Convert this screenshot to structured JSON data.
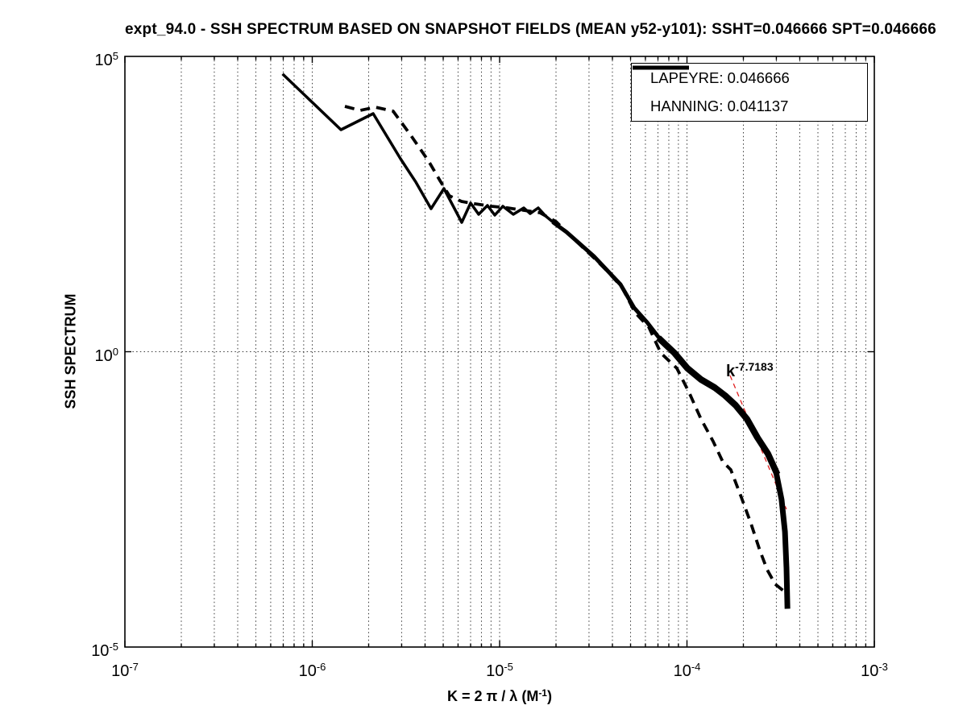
{
  "axes": {
    "x": {
      "label_main": "K = 2 π / λ  (M",
      "label_sup": "-1",
      "label_close": ")",
      "tick_base": "10",
      "tick_exponents": [
        "-7",
        "-6",
        "-5",
        "-4",
        "-3"
      ]
    },
    "y": {
      "label": "SSH SPECTRUM",
      "tick_base": "10",
      "tick_exponents": [
        "5",
        "0",
        "-5"
      ]
    }
  },
  "legend": {
    "entries": [
      {
        "label": "LAPEYRE: 0.046666",
        "line_style": "solid"
      },
      {
        "label": "HANNING: 0.041137",
        "line_style": "dashed"
      }
    ]
  },
  "annotation": {
    "base": "k",
    "exponent": "-7.7183"
  },
  "colors": {
    "curve": "#000000",
    "fit_line": "#e02020",
    "grid": "#3a3a3a",
    "axis": "#000000",
    "background": "#ffffff"
  },
  "chart_data": {
    "type": "line",
    "title": "expt_94.0 - SSH SPECTRUM BASED ON SNAPSHOT FIELDS (MEAN y52-y101): SSHT=0.046666 SPT=0.046666",
    "xlabel": "K = 2 pi / lambda (M^-1)",
    "ylabel": "SSH SPECTRUM",
    "x_scale": "log10",
    "y_scale": "log10",
    "xlim_log10": [
      -7,
      -3
    ],
    "ylim_log10": [
      -5,
      5
    ],
    "x_major_ticks_log10": [
      -7,
      -6,
      -5,
      -4,
      -3
    ],
    "y_major_ticks_log10": [
      5,
      0,
      -5
    ],
    "grid": {
      "x_minor_gridlines": true,
      "x_major_gridlines": true,
      "y_gridlines_log10": [
        0
      ],
      "style": "dotted"
    },
    "legend_position": "top-right",
    "series": [
      {
        "name": "LAPEYRE",
        "value": 0.046666,
        "style": "solid",
        "points_log10": [
          [
            -6.153,
            4.686
          ],
          [
            -5.847,
            3.758
          ],
          [
            -5.675,
            4.031
          ],
          [
            -5.529,
            3.267
          ],
          [
            -5.447,
            2.871
          ],
          [
            -5.366,
            2.421
          ],
          [
            -5.297,
            2.762
          ],
          [
            -5.202,
            2.189
          ],
          [
            -5.155,
            2.517
          ],
          [
            -5.112,
            2.326
          ],
          [
            -5.065,
            2.476
          ],
          [
            -5.026,
            2.312
          ],
          [
            -4.983,
            2.462
          ],
          [
            -4.927,
            2.326
          ],
          [
            -4.871,
            2.435
          ],
          [
            -4.837,
            2.339
          ],
          [
            -4.794,
            2.435
          ],
          [
            -4.755,
            2.299
          ],
          [
            -4.708,
            2.176
          ],
          [
            -4.643,
            2.026
          ],
          [
            -4.57,
            1.821
          ],
          [
            -4.497,
            1.617
          ],
          [
            -4.428,
            1.385
          ],
          [
            -4.355,
            1.139
          ],
          [
            -4.282,
            0.743
          ],
          [
            -4.213,
            0.498
          ],
          [
            -4.14,
            0.198
          ],
          [
            -4.067,
            -0.021
          ],
          [
            -3.998,
            -0.28
          ],
          [
            -3.925,
            -0.471
          ],
          [
            -3.852,
            -0.607
          ],
          [
            -3.796,
            -0.744
          ],
          [
            -3.74,
            -0.907
          ],
          [
            -3.68,
            -1.139
          ],
          [
            -3.624,
            -1.453
          ],
          [
            -3.568,
            -1.726
          ],
          [
            -3.525,
            -2.026
          ],
          [
            -3.495,
            -2.503
          ],
          [
            -3.477,
            -3.049
          ],
          [
            -3.469,
            -3.663
          ],
          [
            -3.464,
            -4.304
          ]
        ],
        "width_segments": [
          {
            "from_index": 0,
            "to_index": 18,
            "width": 3.5
          },
          {
            "from_index": 18,
            "to_index": 26,
            "width": 5
          },
          {
            "from_index": 26,
            "to_index": 36,
            "width": 8
          },
          {
            "from_index": 36,
            "to_index": 40,
            "width": 7
          }
        ]
      },
      {
        "name": "HANNING",
        "value": 0.041137,
        "style": "dashed",
        "line_width": 3.8,
        "points_log10": [
          [
            -5.826,
            4.154
          ],
          [
            -5.744,
            4.086
          ],
          [
            -5.663,
            4.141
          ],
          [
            -5.568,
            4.072
          ],
          [
            -5.474,
            3.663
          ],
          [
            -5.379,
            3.226
          ],
          [
            -5.316,
            2.885
          ],
          [
            -5.268,
            2.64
          ],
          [
            -5.203,
            2.544
          ],
          [
            -5.13,
            2.503
          ],
          [
            -5.044,
            2.462
          ],
          [
            -4.957,
            2.435
          ],
          [
            -4.871,
            2.394
          ],
          [
            -4.785,
            2.353
          ],
          [
            -4.699,
            2.203
          ],
          [
            -4.634,
            1.999
          ],
          [
            -4.561,
            1.78
          ],
          [
            -4.492,
            1.576
          ],
          [
            -4.419,
            1.344
          ],
          [
            -4.346,
            1.085
          ],
          [
            -4.277,
            0.661
          ],
          [
            -4.204,
            0.416
          ],
          [
            -4.14,
            -0.021
          ],
          [
            -4.054,
            -0.28
          ],
          [
            -3.989,
            -0.689
          ],
          [
            -3.925,
            -1.139
          ],
          [
            -3.86,
            -1.521
          ],
          [
            -3.809,
            -1.862
          ],
          [
            -3.766,
            -1.999
          ],
          [
            -3.71,
            -2.463
          ],
          [
            -3.658,
            -2.913
          ],
          [
            -3.611,
            -3.363
          ],
          [
            -3.572,
            -3.69
          ],
          [
            -3.529,
            -3.936
          ],
          [
            -3.486,
            -4.045
          ],
          [
            -3.469,
            -4.1
          ]
        ]
      }
    ],
    "fit_line": {
      "label_base": "k",
      "label_exponent": "-7.7183",
      "slope": -7.7183,
      "points_log10": [
        [
          -3.77,
          -0.403
        ],
        [
          -3.469,
          -2.667
        ]
      ]
    }
  }
}
